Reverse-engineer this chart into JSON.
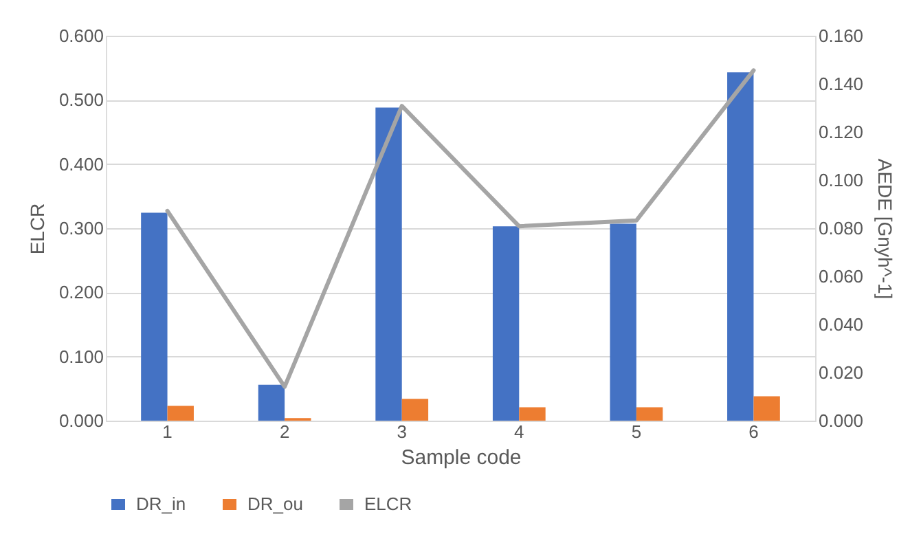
{
  "chart_data": {
    "type": "bar",
    "categories": [
      "1",
      "2",
      "3",
      "4",
      "5",
      "6"
    ],
    "xlabel": "Sample code",
    "ylabel": "ELCR",
    "y2label": "AEDE [Gnyh^-1]",
    "ylim": [
      0,
      0.6
    ],
    "yticks": [
      {
        "value": 0,
        "label": "0.000"
      },
      {
        "value": 0.1,
        "label": "0.100"
      },
      {
        "value": 0.2,
        "label": "0.200"
      },
      {
        "value": 0.3,
        "label": "0.300"
      },
      {
        "value": 0.4,
        "label": "0.400"
      },
      {
        "value": 0.5,
        "label": "0.500"
      },
      {
        "value": 0.6,
        "label": "0.600"
      }
    ],
    "y2lim": [
      0,
      0.16
    ],
    "y2ticks": [
      {
        "value": 0,
        "label": "0.000"
      },
      {
        "value": 0.02,
        "label": "0.020"
      },
      {
        "value": 0.04,
        "label": "0.040"
      },
      {
        "value": 0.06,
        "label": "0.060"
      },
      {
        "value": 0.08,
        "label": "0.080"
      },
      {
        "value": 0.1,
        "label": "0.100"
      },
      {
        "value": 0.12,
        "label": "0.120"
      },
      {
        "value": 0.14,
        "label": "0.140"
      },
      {
        "value": 0.16,
        "label": "0.160"
      }
    ],
    "series": [
      {
        "name": "DR_in",
        "color": "#4472c4",
        "values": [
          0.324,
          0.056,
          0.488,
          0.303,
          0.307,
          0.543
        ]
      },
      {
        "name": "DR_ou",
        "color": "#ed7d31",
        "values": [
          0.023,
          0.004,
          0.034,
          0.021,
          0.021,
          0.038
        ]
      },
      {
        "name": "ELCR",
        "type": "line",
        "axis": "y2",
        "color": "#a5a5a5",
        "values": [
          0.0872,
          0.0141,
          0.1308,
          0.0808,
          0.0832,
          0.1456
        ]
      }
    ],
    "grid": "y",
    "legend": "bottom"
  }
}
